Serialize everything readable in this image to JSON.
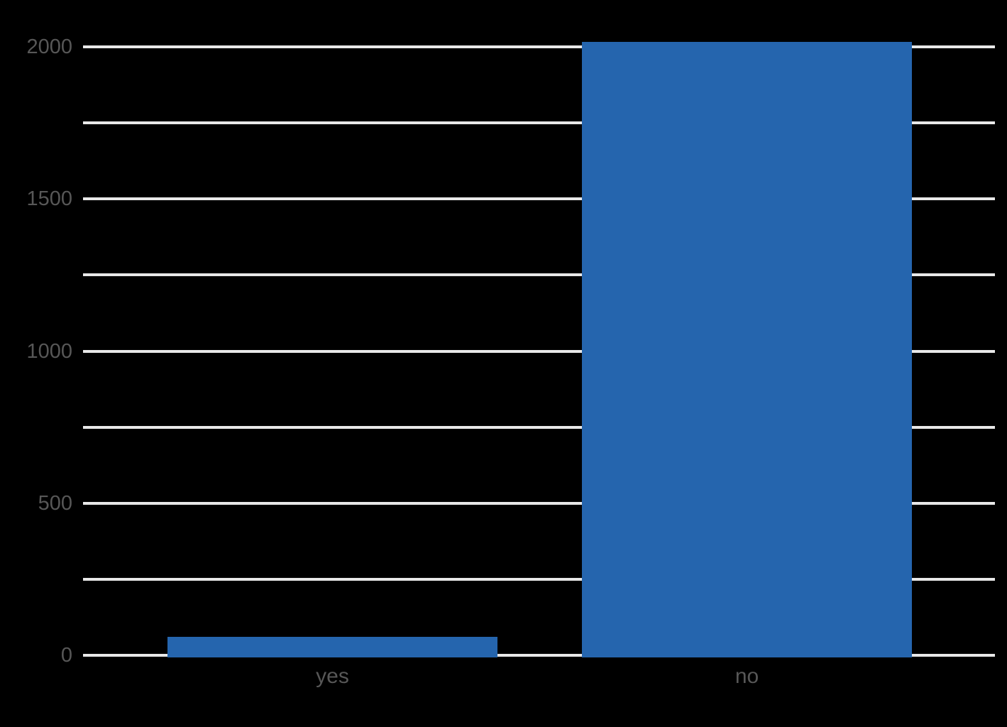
{
  "chart_data": {
    "type": "bar",
    "title": "",
    "xlabel": "",
    "ylabel": "",
    "categories": [
      "yes",
      "no"
    ],
    "values": [
      60,
      2017
    ],
    "ylim": [
      0,
      2000
    ],
    "ytick_values": [
      0,
      500,
      1000,
      1500,
      2000
    ],
    "ytick_labels": [
      "0",
      "500",
      "1000",
      "1500",
      "2000"
    ],
    "gridline_values": [
      0,
      250,
      500,
      750,
      1000,
      1250,
      1500,
      1750,
      2000
    ],
    "grid": true,
    "legend": false,
    "colors": {
      "bar": "#2565ae",
      "gridline": "#e8e8e8",
      "tick_label": "#575757",
      "background": "#000000"
    }
  }
}
